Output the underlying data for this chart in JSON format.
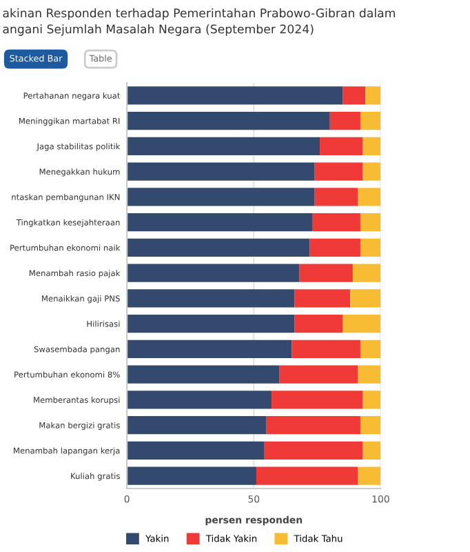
{
  "chart_data": {
    "type": "bar",
    "orientation": "horizontal",
    "stacked": true,
    "title": "akinan Responden terhadap Pemerintahan Prabowo-Gibran dalam\nangani Sejumlah Masalah Negara (September 2024)",
    "annotations": [
      "Stacked Bar",
      "Table"
    ],
    "xlabel": "persen responden",
    "categories": [
      "Pertahanan negara kuat",
      "Meninggikan martabat RI",
      "Jaga stabilitas politik",
      "Menegakkan hukum",
      "ntaskan pembangunan IKN",
      "Tingkatkan kesejahteraan",
      "Pertumbuhan ekonomi naik",
      "Menambah rasio pajak",
      "Menaikkan gaji PNS",
      "Hilirisasi",
      "Swasembada pangan",
      "Pertumbuhan ekonomi 8%",
      "Memberantas korupsi",
      "Makan bergizi gratis",
      "Menambah lapangan kerja",
      "Kuliah gratis"
    ],
    "series": [
      {
        "name": "Yakin",
        "color": "#34496e",
        "values": [
          85,
          80,
          76,
          74,
          74,
          73,
          72,
          68,
          66,
          66,
          65,
          60,
          57,
          55,
          54,
          51
        ]
      },
      {
        "name": "Tidak Yakin",
        "color": "#f03a37",
        "values": [
          9,
          12,
          17,
          19,
          17,
          19,
          20,
          21,
          22,
          19,
          27,
          31,
          36,
          37,
          39,
          40
        ]
      },
      {
        "name": "Tidak Tahu",
        "color": "#f7bb34",
        "values": [
          6,
          8,
          7,
          7,
          9,
          8,
          8,
          11,
          12,
          15,
          8,
          9,
          7,
          8,
          7,
          9
        ]
      }
    ],
    "xlim": [
      0,
      100
    ],
    "xticks": [
      0,
      50,
      100
    ],
    "grid": "x",
    "legend": "bottom"
  }
}
